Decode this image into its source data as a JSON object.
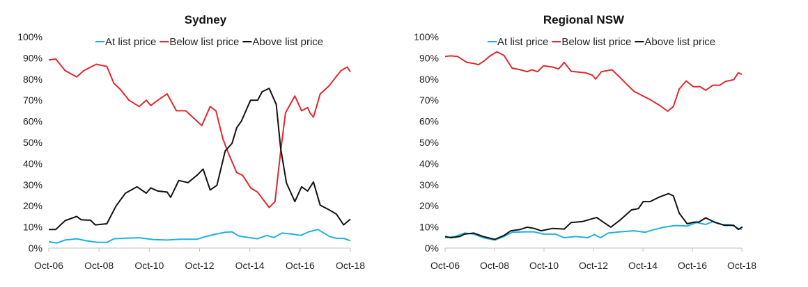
{
  "chart_data": [
    {
      "type": "line",
      "title": "Sydney",
      "xlabel": "",
      "ylabel": "",
      "x_unit": "decimal year",
      "xlim": [
        2006.75,
        2018.75
      ],
      "ylim": [
        0,
        100
      ],
      "x_ticks": [
        {
          "value": 2006.75,
          "label": "Oct-06"
        },
        {
          "value": 2008.75,
          "label": "Oct-08"
        },
        {
          "value": 2010.75,
          "label": "Oct-10"
        },
        {
          "value": 2012.75,
          "label": "Oct-12"
        },
        {
          "value": 2014.75,
          "label": "Oct-14"
        },
        {
          "value": 2016.75,
          "label": "Oct-16"
        },
        {
          "value": 2018.75,
          "label": "Oct-18"
        }
      ],
      "y_ticks": [
        "0%",
        "10%",
        "20%",
        "30%",
        "40%",
        "50%",
        "60%",
        "70%",
        "80%",
        "90%",
        "100%"
      ],
      "grid": false,
      "legend_position": "top",
      "series": [
        {
          "name": "At list price",
          "color": "#1eb0e0",
          "points": [
            [
              2006.75,
              3
            ],
            [
              2007.07,
              2.4
            ],
            [
              2007.4,
              3.8
            ],
            [
              2007.86,
              4.4
            ],
            [
              2008.23,
              3.5
            ],
            [
              2008.69,
              2.7
            ],
            [
              2009.06,
              2.7
            ],
            [
              2009.34,
              4.4
            ],
            [
              2009.8,
              4.7
            ],
            [
              2010.35,
              4.9
            ],
            [
              2010.91,
              4
            ],
            [
              2011.46,
              3.8
            ],
            [
              2012.01,
              4.2
            ],
            [
              2012.66,
              4.2
            ],
            [
              2012.94,
              5.3
            ],
            [
              2013.4,
              6.6
            ],
            [
              2013.77,
              7.5
            ],
            [
              2014.04,
              7.7
            ],
            [
              2014.32,
              5.7
            ],
            [
              2014.69,
              5
            ],
            [
              2015.06,
              4.4
            ],
            [
              2015.43,
              6
            ],
            [
              2015.71,
              5
            ],
            [
              2016.03,
              7.1
            ],
            [
              2016.45,
              6.6
            ],
            [
              2016.77,
              6
            ],
            [
              2017.09,
              7.7
            ],
            [
              2017.46,
              8.8
            ],
            [
              2017.92,
              5.5
            ],
            [
              2018.2,
              4.6
            ],
            [
              2018.48,
              4.6
            ],
            [
              2018.75,
              3.5
            ]
          ]
        },
        {
          "name": "Below list price",
          "color": "#e3262b",
          "points": [
            [
              2006.75,
              89
            ],
            [
              2007.03,
              89.5
            ],
            [
              2007.4,
              84
            ],
            [
              2007.86,
              81
            ],
            [
              2008.14,
              84
            ],
            [
              2008.64,
              87
            ],
            [
              2009.06,
              86
            ],
            [
              2009.34,
              78
            ],
            [
              2009.61,
              75
            ],
            [
              2009.94,
              70
            ],
            [
              2010.35,
              67
            ],
            [
              2010.63,
              70
            ],
            [
              2010.81,
              67.5
            ],
            [
              2011.09,
              70
            ],
            [
              2011.46,
              73
            ],
            [
              2011.83,
              65
            ],
            [
              2012.2,
              65
            ],
            [
              2012.84,
              58
            ],
            [
              2013.17,
              67
            ],
            [
              2013.4,
              65
            ],
            [
              2013.68,
              51.6
            ],
            [
              2013.91,
              44.5
            ],
            [
              2014.23,
              35.7
            ],
            [
              2014.46,
              34.5
            ],
            [
              2014.78,
              28.6
            ],
            [
              2015.06,
              26.4
            ],
            [
              2015.52,
              19.2
            ],
            [
              2015.75,
              22
            ],
            [
              2015.98,
              46
            ],
            [
              2016.17,
              64
            ],
            [
              2016.54,
              72
            ],
            [
              2016.81,
              65
            ],
            [
              2017.05,
              66.5
            ],
            [
              2017.14,
              64
            ],
            [
              2017.28,
              62
            ],
            [
              2017.55,
              73
            ],
            [
              2017.92,
              77
            ],
            [
              2018.11,
              80
            ],
            [
              2018.38,
              84
            ],
            [
              2018.62,
              85.7
            ],
            [
              2018.75,
              83.5
            ]
          ]
        },
        {
          "name": "Above list price",
          "color": "#111111",
          "points": [
            [
              2006.75,
              8.8
            ],
            [
              2007.03,
              8.8
            ],
            [
              2007.4,
              13
            ],
            [
              2007.86,
              15
            ],
            [
              2008.04,
              13.4
            ],
            [
              2008.41,
              13.2
            ],
            [
              2008.6,
              11
            ],
            [
              2009.06,
              11.5
            ],
            [
              2009.43,
              20
            ],
            [
              2009.8,
              26
            ],
            [
              2010.26,
              29
            ],
            [
              2010.63,
              26
            ],
            [
              2010.81,
              28.5
            ],
            [
              2011.09,
              27
            ],
            [
              2011.46,
              26.5
            ],
            [
              2011.6,
              24
            ],
            [
              2011.92,
              32
            ],
            [
              2012.29,
              31
            ],
            [
              2012.66,
              34.6
            ],
            [
              2012.89,
              37.4
            ],
            [
              2013.17,
              27.5
            ],
            [
              2013.44,
              29.7
            ],
            [
              2013.77,
              46
            ],
            [
              2014.04,
              49.5
            ],
            [
              2014.23,
              57
            ],
            [
              2014.41,
              60
            ],
            [
              2014.78,
              70
            ],
            [
              2015.06,
              70
            ],
            [
              2015.24,
              74
            ],
            [
              2015.52,
              75.6
            ],
            [
              2015.8,
              68
            ],
            [
              2015.98,
              47
            ],
            [
              2016.21,
              30.8
            ],
            [
              2016.54,
              22
            ],
            [
              2016.81,
              29
            ],
            [
              2017.05,
              27
            ],
            [
              2017.28,
              31.3
            ],
            [
              2017.55,
              20.3
            ],
            [
              2017.92,
              18
            ],
            [
              2018.2,
              16
            ],
            [
              2018.48,
              11
            ],
            [
              2018.75,
              13.7
            ]
          ]
        }
      ]
    },
    {
      "type": "line",
      "title": "Regional NSW",
      "xlabel": "",
      "ylabel": "",
      "x_unit": "decimal year",
      "xlim": [
        2006.75,
        2018.75
      ],
      "ylim": [
        0,
        100
      ],
      "x_ticks": [
        {
          "value": 2006.75,
          "label": "Oct-06"
        },
        {
          "value": 2008.75,
          "label": "Oct-08"
        },
        {
          "value": 2010.75,
          "label": "Oct-10"
        },
        {
          "value": 2012.75,
          "label": "Oct-12"
        },
        {
          "value": 2014.75,
          "label": "Oct-14"
        },
        {
          "value": 2016.75,
          "label": "Oct-16"
        },
        {
          "value": 2018.75,
          "label": "Oct-18"
        }
      ],
      "y_ticks": [
        "0%",
        "10%",
        "20%",
        "30%",
        "40%",
        "50%",
        "60%",
        "70%",
        "80%",
        "90%",
        "100%"
      ],
      "grid": false,
      "legend_position": "top",
      "series": [
        {
          "name": "At list price",
          "color": "#1eb0e0",
          "points": [
            [
              2006.75,
              4.9
            ],
            [
              2007.16,
              5.5
            ],
            [
              2007.54,
              7.1
            ],
            [
              2007.91,
              6.6
            ],
            [
              2008.29,
              4.9
            ],
            [
              2008.76,
              3.8
            ],
            [
              2009.13,
              5.5
            ],
            [
              2009.46,
              7.5
            ],
            [
              2009.98,
              7.7
            ],
            [
              2010.35,
              7.7
            ],
            [
              2010.73,
              6.6
            ],
            [
              2011.2,
              6.6
            ],
            [
              2011.57,
              4.9
            ],
            [
              2012.04,
              5.5
            ],
            [
              2012.51,
              4.9
            ],
            [
              2012.79,
              6.4
            ],
            [
              2013.03,
              4.9
            ],
            [
              2013.35,
              7.1
            ],
            [
              2013.82,
              7.7
            ],
            [
              2014.39,
              8.2
            ],
            [
              2014.85,
              7.5
            ],
            [
              2015.23,
              8.8
            ],
            [
              2015.61,
              9.9
            ],
            [
              2016.08,
              10.7
            ],
            [
              2016.54,
              10.4
            ],
            [
              2016.92,
              12.1
            ],
            [
              2017.29,
              11.2
            ],
            [
              2017.58,
              12.6
            ],
            [
              2017.95,
              11.2
            ],
            [
              2018.33,
              11
            ],
            [
              2018.61,
              9.3
            ],
            [
              2018.75,
              8.8
            ]
          ]
        },
        {
          "name": "Below list price",
          "color": "#e3262b",
          "points": [
            [
              2006.75,
              90.7
            ],
            [
              2006.98,
              91
            ],
            [
              2007.26,
              90.7
            ],
            [
              2007.63,
              87.9
            ],
            [
              2007.91,
              87.4
            ],
            [
              2008.1,
              86.8
            ],
            [
              2008.34,
              88.7
            ],
            [
              2008.57,
              91
            ],
            [
              2008.85,
              92.9
            ],
            [
              2009.13,
              91.2
            ],
            [
              2009.46,
              85.2
            ],
            [
              2009.79,
              84.4
            ],
            [
              2010.07,
              83.5
            ],
            [
              2010.26,
              84.4
            ],
            [
              2010.49,
              83.5
            ],
            [
              2010.73,
              86.3
            ],
            [
              2011.1,
              85.7
            ],
            [
              2011.34,
              84.8
            ],
            [
              2011.57,
              87.9
            ],
            [
              2011.85,
              83.7
            ],
            [
              2012.42,
              83
            ],
            [
              2012.7,
              81.9
            ],
            [
              2012.84,
              80
            ],
            [
              2013.07,
              83.5
            ],
            [
              2013.5,
              84.4
            ],
            [
              2013.82,
              80.8
            ],
            [
              2014.1,
              77.5
            ],
            [
              2014.39,
              74.2
            ],
            [
              2014.67,
              72.5
            ],
            [
              2015.04,
              70.3
            ],
            [
              2015.42,
              67.6
            ],
            [
              2015.75,
              64.8
            ],
            [
              2015.98,
              67
            ],
            [
              2016.22,
              75.3
            ],
            [
              2016.5,
              79.1
            ],
            [
              2016.78,
              76.4
            ],
            [
              2017.06,
              76.4
            ],
            [
              2017.29,
              74.7
            ],
            [
              2017.58,
              77.1
            ],
            [
              2017.86,
              77.1
            ],
            [
              2018.09,
              78.9
            ],
            [
              2018.42,
              79.7
            ],
            [
              2018.61,
              83
            ],
            [
              2018.75,
              82.2
            ]
          ]
        },
        {
          "name": "Above list price",
          "color": "#111111",
          "points": [
            [
              2006.75,
              5.5
            ],
            [
              2006.98,
              4.9
            ],
            [
              2007.35,
              5.5
            ],
            [
              2007.54,
              6.6
            ],
            [
              2007.91,
              7.1
            ],
            [
              2008.29,
              5.5
            ],
            [
              2008.76,
              4.1
            ],
            [
              2009.13,
              6
            ],
            [
              2009.41,
              8.2
            ],
            [
              2009.79,
              8.8
            ],
            [
              2010.07,
              9.9
            ],
            [
              2010.35,
              9.3
            ],
            [
              2010.63,
              8.2
            ],
            [
              2011.1,
              9.3
            ],
            [
              2011.57,
              9
            ],
            [
              2011.85,
              12.1
            ],
            [
              2012.32,
              12.6
            ],
            [
              2012.88,
              14.5
            ],
            [
              2013.17,
              12.1
            ],
            [
              2013.45,
              9.9
            ],
            [
              2013.82,
              13.2
            ],
            [
              2014.29,
              18.1
            ],
            [
              2014.57,
              18.7
            ],
            [
              2014.76,
              22
            ],
            [
              2015.04,
              22
            ],
            [
              2015.42,
              24.2
            ],
            [
              2015.79,
              25.8
            ],
            [
              2015.98,
              24.7
            ],
            [
              2016.22,
              16.5
            ],
            [
              2016.54,
              11.5
            ],
            [
              2016.83,
              12.3
            ],
            [
              2017.01,
              12.3
            ],
            [
              2017.29,
              14.3
            ],
            [
              2017.67,
              12.1
            ],
            [
              2018.04,
              10.8
            ],
            [
              2018.42,
              10.8
            ],
            [
              2018.61,
              8.8
            ],
            [
              2018.78,
              10.1
            ]
          ]
        }
      ]
    }
  ]
}
